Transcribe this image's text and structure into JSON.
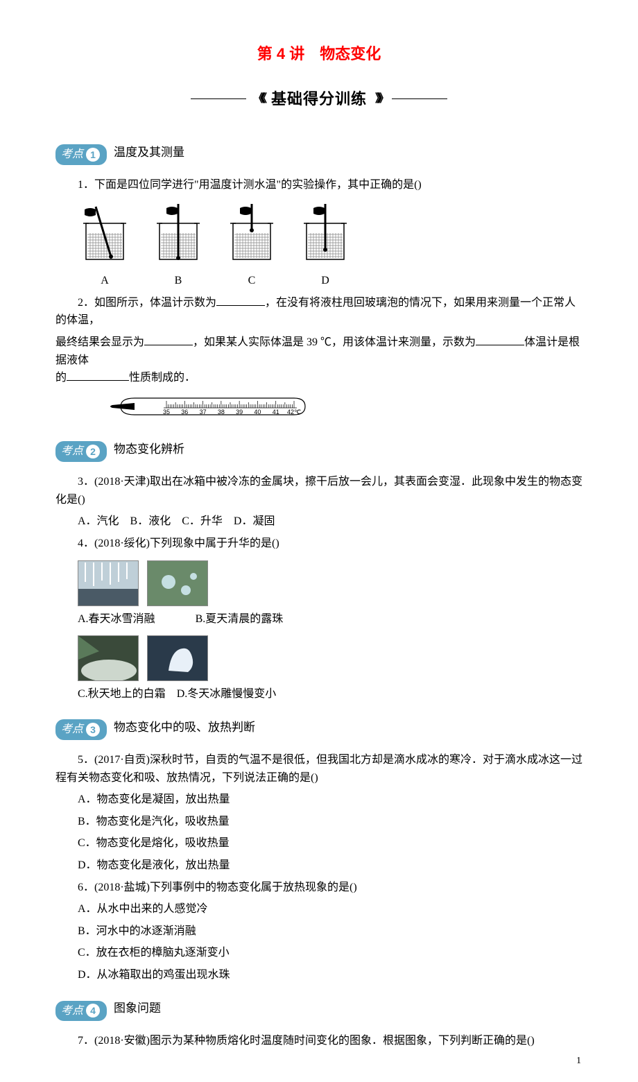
{
  "colors": {
    "title": "#ff0000",
    "pill_bg": "#5aa3c4",
    "pill_text": "#ffffff",
    "text": "#000000",
    "bg": "#ffffff"
  },
  "chapter_title": "第 4 讲　物态变化",
  "banner": {
    "left_quotes": "《《《",
    "text": "基础得分训练",
    "right_quotes": "》》》"
  },
  "topics": [
    {
      "pill_label": "考点",
      "num": "1",
      "name": "温度及其测量"
    },
    {
      "pill_label": "考点",
      "num": "2",
      "name": "物态变化辨析"
    },
    {
      "pill_label": "考点",
      "num": "3",
      "name": "物态变化中的吸、放热判断"
    },
    {
      "pill_label": "考点",
      "num": "4",
      "name": "图象问题"
    }
  ],
  "q1": {
    "text": "1．下面是四位同学进行\"用温度计测水温\"的实验操作，其中正确的是()",
    "labels": [
      "A",
      "B",
      "C",
      "D"
    ],
    "diagram": {
      "beaker_w": 64,
      "beaker_h": 72,
      "water_fill": "#dcdcdc",
      "hatch_color": "#888888",
      "therm_color": "#000000",
      "hand_color": "#000000"
    }
  },
  "q2": {
    "line1_a": "2．如图所示，体温计示数为",
    "line1_b": "，在没有将液柱甩回玻璃泡的情况下，如果用来测量一个正常人的体温，",
    "line2_a": "最终结果会显示为",
    "line2_b": "，如果某人实际体温是 39 ℃，用该体温计来测量，示数为",
    "line2_c": "体温计是根据液体",
    "line3_a": "的",
    "line3_b": "性质制成的．",
    "thermometer": {
      "ticks": [
        "35",
        "36",
        "37",
        "38",
        "39",
        "40",
        "41",
        "42℃"
      ],
      "tick_fontsize": 9,
      "body_color": "#ffffff",
      "outline": "#000000"
    }
  },
  "q3": {
    "text": "3．(2018·天津)取出在冰箱中被冷冻的金属块，擦干后放一会儿，其表面会变湿．此现象中发生的物态变化是()",
    "options": "A．汽化　B．液化　C．升华　D．凝固"
  },
  "q4": {
    "text": "4．(2018·绥化)下列现象中属于升华的是()",
    "row1": [
      {
        "label": "A.春天冰雪消融"
      },
      {
        "label": "B.夏天清晨的露珠"
      }
    ],
    "row2": [
      {
        "label": "C.秋天地上的白霜"
      },
      {
        "label": "D.冬天冰雕慢慢变小"
      }
    ]
  },
  "q5": {
    "text": "5．(2017·自贡)深秋时节，自贡的气温不是很低，但我国北方却是滴水成冰的寒冷．对于滴水成冰这一过程有关物态变化和吸、放热情况，下列说法正确的是()",
    "options": [
      "A．物态变化是凝固，放出热量",
      "B．物态变化是汽化，吸收热量",
      "C．物态变化是熔化，吸收热量",
      "D．物态变化是液化，放出热量"
    ]
  },
  "q6": {
    "text": "6．(2018·盐城)下列事例中的物态变化属于放热现象的是()",
    "options": [
      "A．从水中出来的人感觉冷",
      "B．河水中的冰逐渐消融",
      "C．放在衣柜的樟脑丸逐渐变小",
      "D．从冰箱取出的鸡蛋出现水珠"
    ]
  },
  "q7": {
    "text": "7．(2018·安徽)图示为某种物质熔化时温度随时间变化的图象．根据图象，下列判断正确的是()"
  },
  "page_number": "1"
}
